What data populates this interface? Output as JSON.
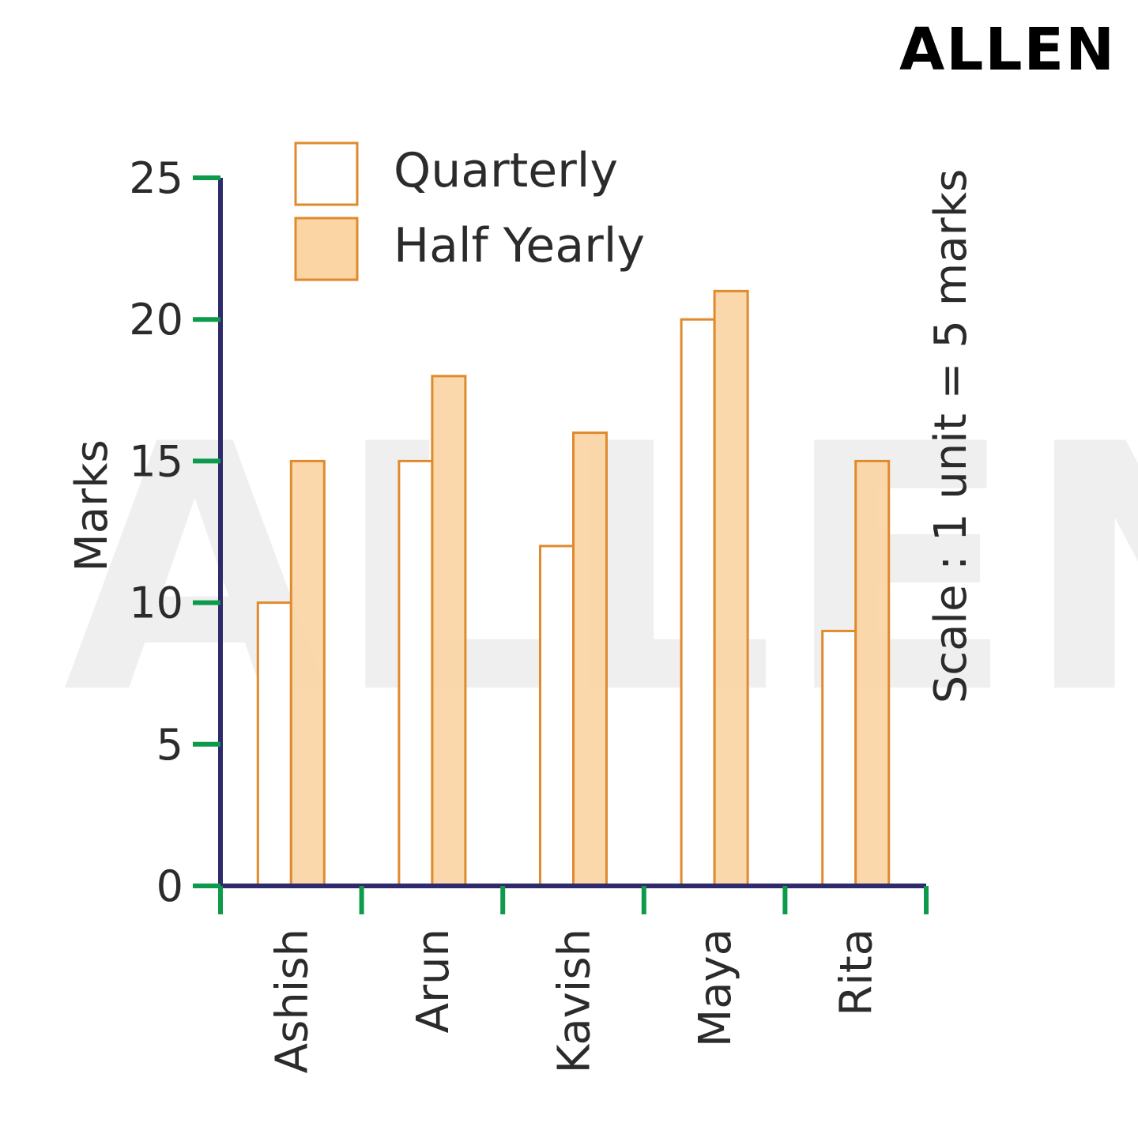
{
  "brand": "ALLEN",
  "watermark": "ALLEN",
  "colors": {
    "axis": "#2e2a6b",
    "tick": "#0e9a4b",
    "bar_stroke": "#e08a2e",
    "quarterly_fill": "#ffffff",
    "half_yearly_fill": "#fbd5a4"
  },
  "chart_data": {
    "type": "bar",
    "categories": [
      "Ashish",
      "Arun",
      "Kavish",
      "Maya",
      "Rita"
    ],
    "series": [
      {
        "name": "Quarterly",
        "values": [
          10,
          15,
          12,
          20,
          9
        ]
      },
      {
        "name": "Half Yearly",
        "values": [
          15,
          18,
          16,
          21,
          15
        ]
      }
    ],
    "ylabel": "Marks",
    "xlabel": "",
    "ylim": [
      0,
      25
    ],
    "yticks": [
      0,
      5,
      10,
      15,
      20,
      25
    ],
    "legend_position": "top-left",
    "grid": false,
    "scale_note": "Scale : 1 unit = 5 marks"
  }
}
